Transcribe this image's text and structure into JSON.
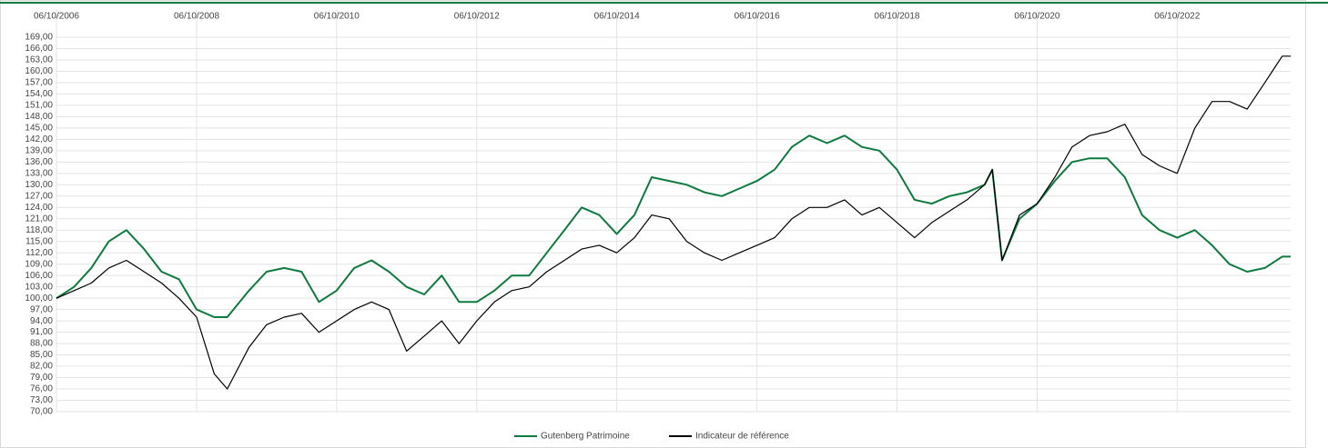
{
  "chart_data": {
    "type": "line",
    "x": [
      "2006-10-06",
      "2007-01-06",
      "2007-04-06",
      "2007-07-06",
      "2007-10-06",
      "2008-01-06",
      "2008-04-06",
      "2008-07-06",
      "2008-10-06",
      "2009-01-06",
      "2009-03-15",
      "2009-07-06",
      "2009-10-06",
      "2010-01-06",
      "2010-04-06",
      "2010-07-06",
      "2010-10-06",
      "2011-01-06",
      "2011-04-06",
      "2011-07-06",
      "2011-10-06",
      "2012-01-06",
      "2012-04-06",
      "2012-07-06",
      "2012-10-06",
      "2013-01-06",
      "2013-04-06",
      "2013-07-06",
      "2013-10-06",
      "2014-01-06",
      "2014-04-06",
      "2014-07-06",
      "2014-10-06",
      "2015-01-06",
      "2015-04-06",
      "2015-07-06",
      "2015-10-06",
      "2016-01-06",
      "2016-04-06",
      "2016-07-06",
      "2016-10-06",
      "2017-01-06",
      "2017-04-06",
      "2017-07-06",
      "2017-10-06",
      "2018-01-06",
      "2018-04-06",
      "2018-07-06",
      "2018-10-06",
      "2019-01-06",
      "2019-04-06",
      "2019-07-06",
      "2019-10-06",
      "2020-01-06",
      "2020-02-15",
      "2020-04-06",
      "2020-07-06",
      "2020-10-06",
      "2021-01-06",
      "2021-04-06",
      "2021-07-06",
      "2021-10-06",
      "2022-01-06",
      "2022-04-06",
      "2022-07-06",
      "2022-10-06",
      "2023-01-06",
      "2023-04-06",
      "2023-07-06",
      "2023-10-06",
      "2024-01-06",
      "2024-04-06",
      "2024-05-20"
    ],
    "series": [
      {
        "name": "Gutenberg Patrimoine",
        "color": "#0e7a3e",
        "values": [
          100,
          103,
          108,
          115,
          118,
          113,
          107,
          105,
          97,
          95,
          95,
          102,
          107,
          108,
          107,
          99,
          102,
          108,
          110,
          107,
          103,
          101,
          106,
          99,
          99,
          102,
          106,
          106,
          112,
          118,
          124,
          122,
          117,
          122,
          132,
          131,
          130,
          128,
          127,
          129,
          131,
          134,
          140,
          143,
          141,
          143,
          140,
          139,
          134,
          126,
          125,
          127,
          128,
          130,
          134,
          110,
          121,
          125,
          131,
          136,
          137,
          137,
          132,
          122,
          118,
          116,
          118,
          114,
          109,
          107,
          108,
          111,
          111
        ]
      },
      {
        "name": "Indicateur de référence",
        "color": "#000000",
        "values": [
          100,
          102,
          104,
          108,
          110,
          107,
          104,
          100,
          95,
          80,
          76,
          87,
          93,
          95,
          96,
          91,
          94,
          97,
          99,
          97,
          86,
          90,
          94,
          88,
          94,
          99,
          102,
          103,
          107,
          110,
          113,
          114,
          112,
          116,
          122,
          121,
          115,
          112,
          110,
          112,
          114,
          116,
          121,
          124,
          124,
          126,
          122,
          124,
          120,
          116,
          120,
          123,
          126,
          130,
          134,
          110,
          122,
          125,
          132,
          140,
          143,
          144,
          146,
          138,
          135,
          133,
          145,
          152,
          152,
          150,
          157,
          164,
          164
        ]
      }
    ],
    "xlim": [
      "2006-10-06",
      "2024-05-20"
    ],
    "xticks": [
      {
        "value": "2006-10-06",
        "label": "06/10/2006"
      },
      {
        "value": "2008-10-06",
        "label": "06/10/2008"
      },
      {
        "value": "2010-10-06",
        "label": "06/10/2010"
      },
      {
        "value": "2012-10-06",
        "label": "06/10/2012"
      },
      {
        "value": "2014-10-06",
        "label": "06/10/2014"
      },
      {
        "value": "2016-10-06",
        "label": "06/10/2016"
      },
      {
        "value": "2018-10-06",
        "label": "06/10/2018"
      },
      {
        "value": "2020-10-06",
        "label": "06/10/2020"
      },
      {
        "value": "2022-10-06",
        "label": "06/10/2022"
      }
    ],
    "ylim": [
      70,
      169
    ],
    "yticks": [
      {
        "value": 70,
        "label": "70,00"
      },
      {
        "value": 73,
        "label": "73,00"
      },
      {
        "value": 76,
        "label": "76,00"
      },
      {
        "value": 79,
        "label": "79,00"
      },
      {
        "value": 82,
        "label": "82,00"
      },
      {
        "value": 85,
        "label": "85,00"
      },
      {
        "value": 88,
        "label": "88,00"
      },
      {
        "value": 91,
        "label": "91,00"
      },
      {
        "value": 94,
        "label": "94,00"
      },
      {
        "value": 97,
        "label": "97,00"
      },
      {
        "value": 100,
        "label": "100,00"
      },
      {
        "value": 103,
        "label": "103,00"
      },
      {
        "value": 106,
        "label": "106,00"
      },
      {
        "value": 109,
        "label": "109,00"
      },
      {
        "value": 112,
        "label": "112,00"
      },
      {
        "value": 115,
        "label": "115,00"
      },
      {
        "value": 118,
        "label": "118,00"
      },
      {
        "value": 121,
        "label": "121,00"
      },
      {
        "value": 124,
        "label": "124,00"
      },
      {
        "value": 127,
        "label": "127,00"
      },
      {
        "value": 130,
        "label": "130,00"
      },
      {
        "value": 133,
        "label": "133,00"
      },
      {
        "value": 136,
        "label": "136,00"
      },
      {
        "value": 139,
        "label": "139,00"
      },
      {
        "value": 142,
        "label": "142,00"
      },
      {
        "value": 145,
        "label": "145,00"
      },
      {
        "value": 148,
        "label": "148,00"
      },
      {
        "value": 151,
        "label": "151,00"
      },
      {
        "value": 154,
        "label": "154,00"
      },
      {
        "value": 157,
        "label": "157,00"
      },
      {
        "value": 160,
        "label": "160,00"
      },
      {
        "value": 163,
        "label": "163,00"
      },
      {
        "value": 166,
        "label": "166,00"
      },
      {
        "value": 169,
        "label": "169,00"
      }
    ],
    "grid": true,
    "legend": "bottom"
  }
}
